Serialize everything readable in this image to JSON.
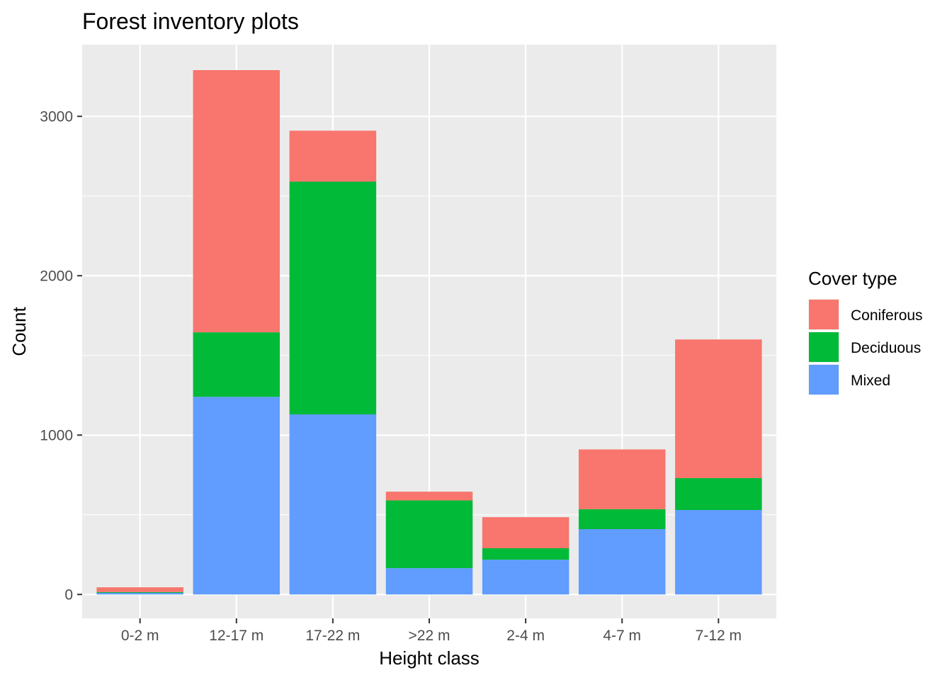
{
  "chart_data": {
    "type": "bar",
    "stacked": true,
    "title": "Forest inventory plots",
    "xlabel": "Height class",
    "ylabel": "Count",
    "categories": [
      "0-2 m",
      "12-17 m",
      "17-22 m",
      ">22 m",
      "2-4 m",
      "4-7 m",
      "7-12 m"
    ],
    "series": [
      {
        "name": "Mixed",
        "color": "#619CFF",
        "values": [
          10,
          1240,
          1130,
          165,
          218,
          410,
          530
        ]
      },
      {
        "name": "Deciduous",
        "color": "#00BA38",
        "values": [
          5,
          405,
          1460,
          425,
          72,
          125,
          200
        ]
      },
      {
        "name": "Coniferous",
        "color": "#F8766D",
        "values": [
          30,
          1645,
          320,
          55,
          195,
          375,
          870
        ]
      }
    ],
    "ylim": [
      -150,
      3450
    ],
    "yticks": [
      0,
      1000,
      2000,
      3000
    ],
    "grid": true,
    "legend": {
      "title": "Cover type",
      "position": "right",
      "entries": [
        "Coniferous",
        "Deciduous",
        "Mixed"
      ]
    },
    "panel_background": "#EBEBEB",
    "grid_color": "#FFFFFF"
  }
}
